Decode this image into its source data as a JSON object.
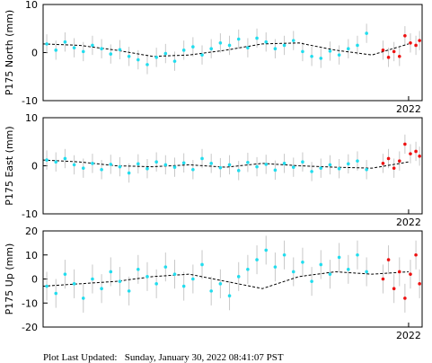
{
  "chart_data": [
    {
      "type": "scatter",
      "ylabel": "P175 North (mm)",
      "xlim": [
        2021.0,
        2022.037
      ],
      "xticks": [
        2022
      ],
      "ylim": [
        -10,
        10
      ],
      "yticks": [
        -10,
        0,
        10
      ],
      "series": [
        {
          "color": "#22ddee",
          "error": 2,
          "x": [
            2021.01,
            2021.035,
            2021.06,
            2021.085,
            2021.11,
            2021.135,
            2021.16,
            2021.185,
            2021.21,
            2021.235,
            2021.26,
            2021.285,
            2021.31,
            2021.335,
            2021.36,
            2021.385,
            2021.41,
            2021.435,
            2021.46,
            2021.485,
            2021.51,
            2021.535,
            2021.56,
            2021.585,
            2021.61,
            2021.635,
            2021.66,
            2021.685,
            2021.71,
            2021.735,
            2021.76,
            2021.785,
            2021.81,
            2021.835,
            2021.86,
            2021.885
          ],
          "values": [
            1.8,
            0.5,
            2.2,
            1.0,
            0.2,
            1.5,
            0.8,
            -0.3,
            0.6,
            -0.8,
            -1.5,
            -2.5,
            -1.0,
            -0.2,
            -1.8,
            0.5,
            1.2,
            -0.5,
            0.8,
            2.0,
            1.5,
            2.8,
            1.0,
            3.0,
            2.2,
            0.8,
            1.5,
            2.5,
            0.2,
            -0.8,
            -1.2,
            0.3,
            -0.5,
            0.8,
            1.5,
            4.0
          ]
        },
        {
          "color": "#ee1111",
          "error": 2,
          "x": [
            2021.93,
            2021.945,
            2021.96,
            2021.975,
            2021.99,
            2022.005,
            2022.02,
            2022.03
          ],
          "values": [
            0.5,
            -1.0,
            0.2,
            -0.8,
            3.5,
            2.0,
            1.5,
            2.5
          ]
        }
      ],
      "trend": {
        "color": "#000000",
        "x": [
          2021.0,
          2021.1,
          2021.2,
          2021.3,
          2021.4,
          2021.5,
          2021.6,
          2021.7,
          2021.8,
          2021.9,
          2022.0
        ],
        "values": [
          1.8,
          1.5,
          0.5,
          -0.8,
          -0.5,
          0.5,
          1.8,
          2.0,
          0.5,
          -0.5,
          1.8
        ]
      }
    },
    {
      "type": "scatter",
      "ylabel": "P175 East (mm)",
      "xlim": [
        2021.0,
        2022.037
      ],
      "xticks": [
        2022
      ],
      "ylim": [
        -10,
        10
      ],
      "yticks": [
        -10,
        0,
        10
      ],
      "series": [
        {
          "color": "#22ddee",
          "error": 2,
          "x": [
            2021.01,
            2021.035,
            2021.06,
            2021.085,
            2021.11,
            2021.135,
            2021.16,
            2021.185,
            2021.21,
            2021.235,
            2021.26,
            2021.285,
            2021.31,
            2021.335,
            2021.36,
            2021.385,
            2021.41,
            2021.435,
            2021.46,
            2021.485,
            2021.51,
            2021.535,
            2021.56,
            2021.585,
            2021.61,
            2021.635,
            2021.66,
            2021.685,
            2021.71,
            2021.735,
            2021.76,
            2021.785,
            2021.81,
            2021.835,
            2021.86,
            2021.885
          ],
          "values": [
            1.2,
            0.8,
            1.5,
            0.2,
            -0.5,
            0.5,
            -0.8,
            0.3,
            -0.2,
            -1.5,
            0.4,
            -0.6,
            0.8,
            0.2,
            -0.3,
            0.6,
            -0.8,
            1.5,
            0.5,
            -0.4,
            0.2,
            -1.0,
            0.7,
            -0.2,
            0.3,
            -0.9,
            0.5,
            -0.3,
            0.8,
            -1.2,
            -0.5,
            0.2,
            -0.6,
            0.4,
            1.0,
            -0.8
          ]
        },
        {
          "color": "#ee1111",
          "error": 2,
          "x": [
            2021.93,
            2021.945,
            2021.96,
            2021.975,
            2021.99,
            2022.005,
            2022.02,
            2022.03
          ],
          "values": [
            0.5,
            1.5,
            -0.5,
            1.0,
            4.5,
            2.5,
            3.0,
            2.0
          ]
        }
      ],
      "trend": {
        "color": "#000000",
        "x": [
          2021.0,
          2021.1,
          2021.2,
          2021.3,
          2021.4,
          2021.5,
          2021.6,
          2021.7,
          2021.8,
          2021.9,
          2022.0
        ],
        "values": [
          1.2,
          0.8,
          0.0,
          -0.2,
          0.2,
          -0.3,
          0.5,
          0.0,
          -0.3,
          -0.5,
          0.8
        ]
      }
    },
    {
      "type": "scatter",
      "ylabel": "P175 Up (mm)",
      "xlim": [
        2021.0,
        2022.037
      ],
      "xticks": [
        2022
      ],
      "ylim": [
        -20,
        20
      ],
      "yticks": [
        -20,
        -10,
        0,
        10,
        20
      ],
      "series": [
        {
          "color": "#22ddee",
          "error": 6,
          "x": [
            2021.01,
            2021.035,
            2021.06,
            2021.085,
            2021.11,
            2021.135,
            2021.16,
            2021.185,
            2021.21,
            2021.235,
            2021.26,
            2021.285,
            2021.31,
            2021.335,
            2021.36,
            2021.385,
            2021.41,
            2021.435,
            2021.46,
            2021.485,
            2021.51,
            2021.535,
            2021.56,
            2021.585,
            2021.61,
            2021.635,
            2021.66,
            2021.685,
            2021.71,
            2021.735,
            2021.76,
            2021.785,
            2021.81,
            2021.835,
            2021.86,
            2021.885
          ],
          "values": [
            -3,
            -6,
            2,
            -2,
            -8,
            0,
            -4,
            3,
            -1,
            -5,
            4,
            1,
            -2,
            5,
            2,
            -3,
            0,
            6,
            -5,
            -2,
            -7,
            1,
            4,
            8,
            12,
            5,
            10,
            3,
            7,
            -1,
            6,
            2,
            9,
            4,
            10,
            3
          ]
        },
        {
          "color": "#ee1111",
          "error": 6,
          "x": [
            2021.93,
            2021.945,
            2021.96,
            2021.975,
            2021.99,
            2022.005,
            2022.02,
            2022.03
          ],
          "values": [
            0,
            8,
            -4,
            3,
            -8,
            2,
            10,
            -2
          ]
        }
      ],
      "trend": {
        "color": "#000000",
        "x": [
          2021.0,
          2021.1,
          2021.2,
          2021.3,
          2021.4,
          2021.5,
          2021.6,
          2021.7,
          2021.8,
          2021.9,
          2022.0
        ],
        "values": [
          -3,
          -2,
          -1,
          1,
          2,
          -1,
          -4,
          1,
          3,
          2,
          3
        ]
      }
    }
  ],
  "footer": "Plot Last Updated:   Sunday, January 30, 2022 08:41:07 PST"
}
